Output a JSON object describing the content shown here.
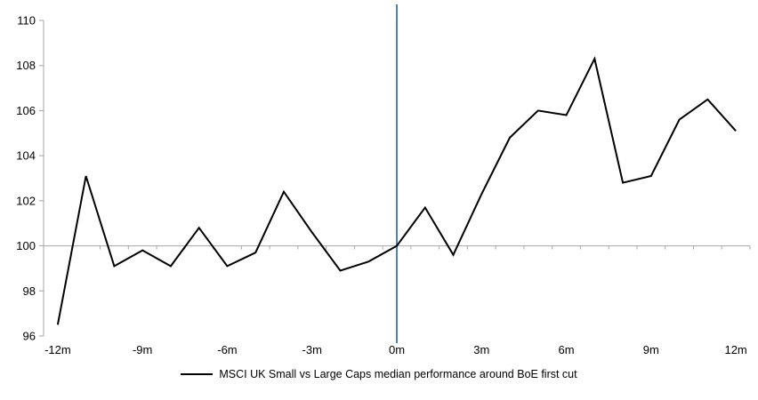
{
  "chart_data": {
    "type": "line",
    "title": "",
    "xlabel": "",
    "ylabel": "",
    "x": [
      -12,
      -11,
      -10,
      -9,
      -8,
      -7,
      -6,
      -5,
      -4,
      -3,
      -2,
      -1,
      0,
      1,
      2,
      3,
      4,
      5,
      6,
      7,
      8,
      9,
      10,
      11,
      12
    ],
    "series": [
      {
        "name": "MSCI UK Small vs Large Caps median performance around BoE first cut",
        "color": "#000000",
        "values": [
          96.5,
          103.1,
          99.1,
          99.8,
          99.1,
          100.8,
          99.1,
          99.7,
          102.4,
          100.6,
          98.9,
          99.3,
          100.0,
          101.7,
          99.6,
          102.3,
          104.8,
          106.0,
          105.8,
          108.3,
          102.8,
          103.1,
          105.6,
          106.5,
          105.1
        ]
      }
    ],
    "ylim": [
      96,
      110
    ],
    "yticks": [
      96,
      98,
      100,
      102,
      104,
      106,
      108,
      110
    ],
    "ytick_labels": [
      "96",
      "98",
      "100",
      "102",
      "104",
      "106",
      "108",
      "110"
    ],
    "xticks": [
      -12,
      -9,
      -6,
      -3,
      0,
      3,
      6,
      9,
      12
    ],
    "xtick_labels": [
      "-12m",
      "-9m",
      "-6m",
      "-3m",
      "0m",
      "3m",
      "6m",
      "9m",
      "12m"
    ],
    "axis_crosses_at": 100,
    "event_line_x": 0,
    "grid": "off",
    "legend_position": "bottom",
    "colors": {
      "series_line": "#000000",
      "axis_line": "#a6a6a6",
      "event_line": "#4f81bd",
      "label_text": "#000000"
    }
  }
}
